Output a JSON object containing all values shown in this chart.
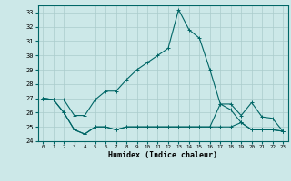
{
  "title": "",
  "xlabel": "Humidex (Indice chaleur)",
  "background_color": "#cce8e8",
  "grid_color": "#aacccc",
  "line_color": "#006666",
  "xlim": [
    -0.5,
    23.5
  ],
  "ylim": [
    24,
    33.5
  ],
  "yticks": [
    24,
    25,
    26,
    27,
    28,
    29,
    30,
    31,
    32,
    33
  ],
  "xticks": [
    0,
    1,
    2,
    3,
    4,
    5,
    6,
    7,
    8,
    9,
    10,
    11,
    12,
    13,
    14,
    15,
    16,
    17,
    18,
    19,
    20,
    21,
    22,
    23
  ],
  "series": [
    [
      27.0,
      26.9,
      26.9,
      25.8,
      25.8,
      26.9,
      27.5,
      27.5,
      28.3,
      29.0,
      29.5,
      30.0,
      30.5,
      33.2,
      31.8,
      31.2,
      29.0,
      26.6,
      26.6,
      25.8,
      26.7,
      25.7,
      25.6,
      24.7
    ],
    [
      27.0,
      26.9,
      26.0,
      24.8,
      24.5,
      25.0,
      25.0,
      24.8,
      25.0,
      25.0,
      25.0,
      25.0,
      25.0,
      25.0,
      25.0,
      25.0,
      25.0,
      25.0,
      25.0,
      25.3,
      24.8,
      24.8,
      24.8,
      24.7
    ],
    [
      27.0,
      26.9,
      26.0,
      24.8,
      24.5,
      25.0,
      25.0,
      24.8,
      25.0,
      25.0,
      25.0,
      25.0,
      25.0,
      25.0,
      25.0,
      25.0,
      25.0,
      26.6,
      26.2,
      25.3,
      24.8,
      24.8,
      24.8,
      24.7
    ]
  ]
}
